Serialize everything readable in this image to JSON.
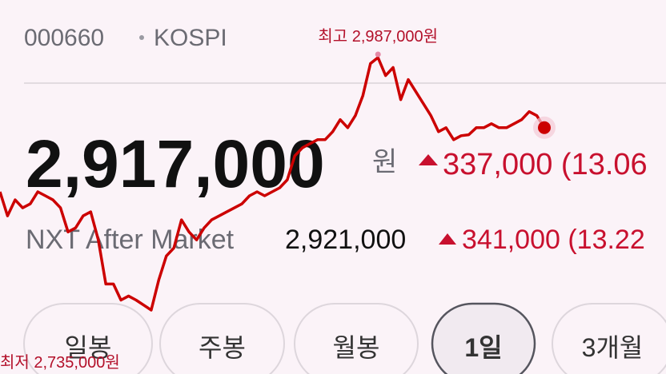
{
  "header": {
    "code": "000660",
    "market": "KOSPI"
  },
  "quote": {
    "price": "2,917,000",
    "unit": "원",
    "change": "337,000 (13.06"
  },
  "after_market": {
    "label": "NXT After Market",
    "price": "2,921,000",
    "change": "341,000 (13.22"
  },
  "tabs": [
    "일봉",
    "주봉",
    "월봉",
    "1일",
    "3개월"
  ],
  "chart_data": {
    "type": "line",
    "color": "#cc0000",
    "annotations": {
      "high": "최고 2,987,000원",
      "low": "최저 2,735,000원"
    },
    "values": [
      2853000,
      2829000,
      2845000,
      2837000,
      2841000,
      2853000,
      2849000,
      2845000,
      2837000,
      2813000,
      2817000,
      2829000,
      2833000,
      2805000,
      2761000,
      2761000,
      2745000,
      2749000,
      2745000,
      2740000,
      2735000,
      2765000,
      2789000,
      2797000,
      2825000,
      2813000,
      2805000,
      2817000,
      2825000,
      2829000,
      2833000,
      2837000,
      2841000,
      2849000,
      2853000,
      2849000,
      2853000,
      2857000,
      2865000,
      2889000,
      2897000,
      2901000,
      2905000,
      2905000,
      2913000,
      2925000,
      2917000,
      2929000,
      2949000,
      2981000,
      2987000,
      2969000,
      2977000,
      2945000,
      2965000,
      2953000,
      2941000,
      2929000,
      2913000,
      2917000,
      2905000,
      2909000,
      2910000,
      2917000,
      2917000,
      2921000,
      2917000,
      2917000,
      2921000,
      2925000,
      2933000,
      2929000,
      2917000
    ]
  }
}
